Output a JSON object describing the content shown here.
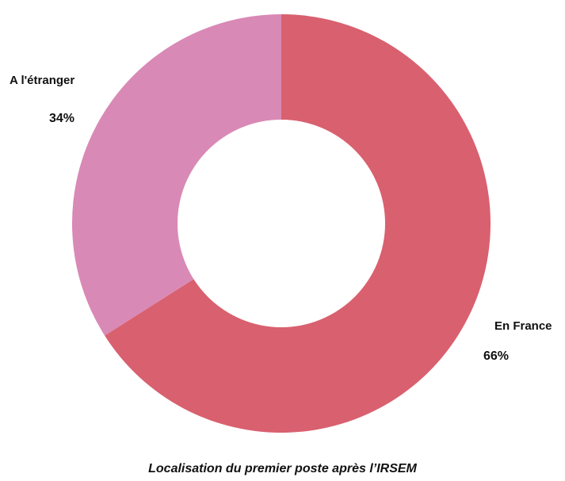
{
  "chart_data": {
    "type": "pie",
    "donut": true,
    "slices": [
      {
        "label": "En France",
        "value": 66,
        "value_label": "66%",
        "color": "#d9606f"
      },
      {
        "label": "A l'étranger",
        "value": 34,
        "value_label": "34%",
        "color": "#d989b5"
      }
    ],
    "caption": "Localisation du premier poste après l’IRSEM",
    "legend": "none"
  }
}
